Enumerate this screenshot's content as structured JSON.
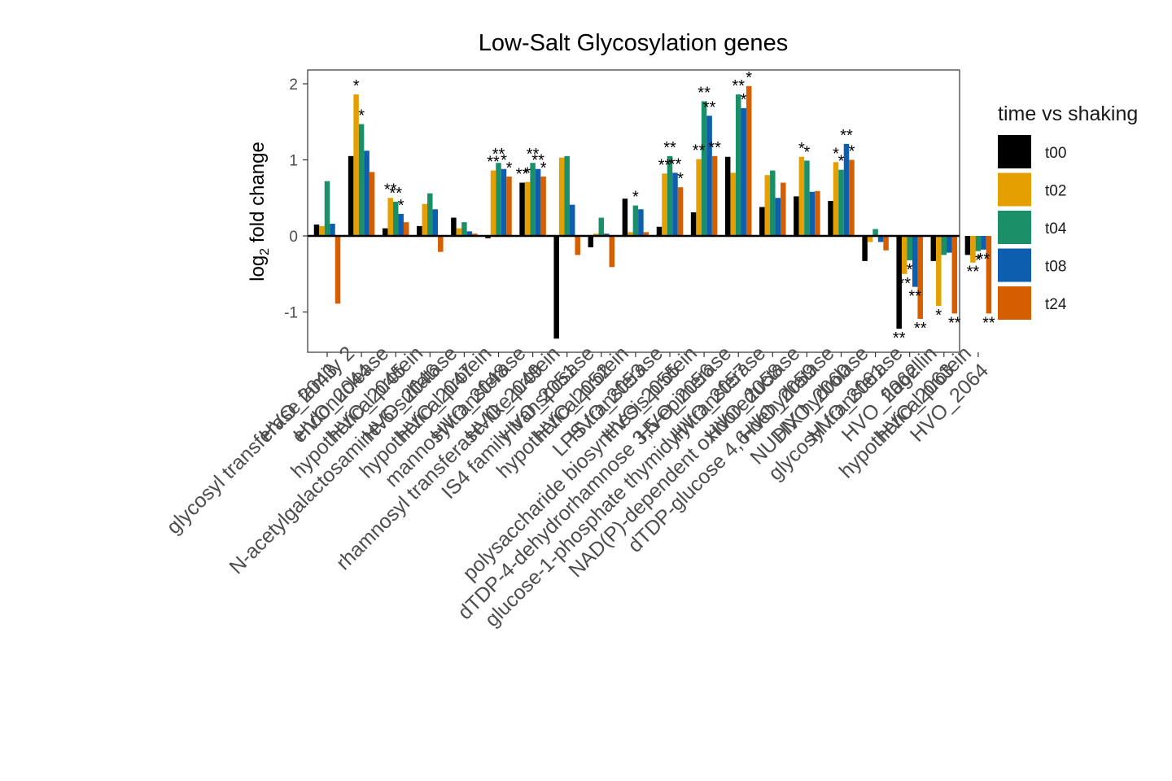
{
  "chart_data": {
    "type": "bar",
    "title": "Low-Salt Glycosylation genes",
    "ylabel_main": "log",
    "ylabel_sub": "2",
    "ylabel_rest": " fold change",
    "xlabel": "",
    "ylim": [
      -1.5,
      2.2
    ],
    "yticks": [
      2,
      1,
      0,
      -1
    ],
    "ytick_labels": [
      "2",
      "1",
      "0",
      "-1"
    ],
    "grid": false,
    "legend": {
      "title": "time vs shaking",
      "position": "right"
    },
    "categories": [
      "HVO_2043",
      "glycosyl transferase family 2 HVO_2044",
      "endonuclease HVO_2045",
      "hypothetical protein HVO_2046",
      "N-acetylgalactosamine-6-sulfatase HVO_2047",
      "hypothetical protein HVO_2048",
      "mannosyltransferase HVO_2049",
      "rhamnosyl transferase-like protein HVO_2051",
      "IS4 family transposase HVO_2052",
      "hypothetical protein HVO_2053",
      "LPS transferase HVO_2055",
      "polysaccharide biosynthesis protein HVO_2056",
      "dTDP-4-dehydrorhamnose 3,5-epimerase HVO_2057",
      "glucose-1-phosphate thymidylyltransferase HVO_2058",
      "NAD(P)-dependent oxidoreductase HVO_2059",
      "dTDP-glucose 4,6-dehydratase HVO_2060",
      "NUDIX hydrolase HVO_2061",
      "glycosyl transferase HVO_2062",
      "flagellin HVO_2063",
      "hypothetical protein HVO_2064"
    ],
    "tick_label_lines": [
      [
        "HVO_2043"
      ],
      [
        "glycosyl transferase family 2",
        "HVO_2044"
      ],
      [
        "endonuclease",
        "HVO_2045"
      ],
      [
        "hypothetical protein",
        "HVO_2046"
      ],
      [
        "N-acetylgalactosamine-6-sulfatase",
        "HVO_2047"
      ],
      [
        "hypothetical protein",
        "HVO_2048"
      ],
      [
        "mannosyltransferase",
        "HVO_2049"
      ],
      [
        "rhamnosyl transferase-like protein",
        "HVO_2051"
      ],
      [
        "IS4 family transposase",
        "HVO_2052"
      ],
      [
        "hypothetical protein",
        "HVO_2053"
      ],
      [
        "LPS transferase",
        "HVO_2055"
      ],
      [
        "polysaccharide biosynthesis protein",
        "HVO_2056"
      ],
      [
        "dTDP-4-dehydrorhamnose 3,5-epimerase",
        "HVO_2057"
      ],
      [
        "glucose-1-phosphate thymidylyltransferase",
        "HVO_2058"
      ],
      [
        "NAD(P)-dependent oxidoreductase",
        "HVO_2059"
      ],
      [
        "dTDP-glucose 4,6-dehydratase",
        "HVO_2060"
      ],
      [
        "NUDIX hydrolase",
        "HVO_2061"
      ],
      [
        "glycosyl transferase",
        "HVO_2062"
      ],
      [
        "flagellin",
        "HVO_2063"
      ],
      [
        "hypothetical protein",
        "HVO_2064"
      ]
    ],
    "series": [
      {
        "name": "t00",
        "color": "#000000",
        "values": [
          0.15,
          1.05,
          0.1,
          0.13,
          0.24,
          -0.03,
          0.7,
          -1.35,
          -0.15,
          0.49,
          0.12,
          0.31,
          1.04,
          0.38,
          0.52,
          0.46,
          -0.33,
          -1.22,
          -0.33,
          -0.25
        ],
        "stars": [
          "",
          "",
          "",
          "",
          "",
          "",
          "**",
          "",
          "",
          "",
          "",
          "",
          "",
          "",
          "",
          "",
          "",
          "**",
          "",
          ""
        ]
      },
      {
        "name": "t02",
        "color": "#E69F00",
        "values": [
          0.13,
          1.86,
          0.5,
          0.42,
          0.1,
          0.86,
          0.71,
          1.03,
          0.03,
          0.05,
          0.82,
          1.01,
          0.83,
          0.8,
          1.04,
          0.97,
          -0.08,
          -0.5,
          -0.92,
          -0.35
        ],
        "stars": [
          "",
          "*",
          "**",
          "",
          "",
          "**",
          "*",
          "",
          "",
          "",
          "**",
          "**",
          "",
          "",
          "*",
          "*",
          "",
          "**",
          "*",
          "**"
        ]
      },
      {
        "name": "t04",
        "color": "#1B9068",
        "values": [
          0.72,
          1.47,
          0.45,
          0.56,
          0.18,
          0.96,
          0.96,
          1.05,
          0.24,
          0.4,
          1.05,
          1.77,
          1.86,
          0.86,
          0.99,
          0.87,
          0.09,
          -0.32,
          -0.25,
          -0.2
        ],
        "stars": [
          "",
          "*",
          "**",
          "",
          "",
          "**",
          "**",
          "",
          "",
          "*",
          "**",
          "**",
          "**",
          "",
          "*",
          "*",
          "",
          "*",
          "",
          "*"
        ]
      },
      {
        "name": "t08",
        "color": "#0D5EAF",
        "values": [
          0.16,
          1.12,
          0.29,
          0.35,
          0.06,
          0.88,
          0.88,
          0.41,
          0.03,
          0.35,
          0.83,
          1.58,
          1.68,
          0.5,
          0.58,
          1.21,
          -0.08,
          -0.67,
          -0.22,
          -0.18
        ],
        "stars": [
          "",
          "",
          "*",
          "",
          "",
          "*",
          "**",
          "",
          "",
          "",
          "**",
          "**",
          "*",
          "",
          "",
          "**",
          "",
          "**",
          "",
          "**"
        ]
      },
      {
        "name": "t24",
        "color": "#D55E00",
        "values": [
          -0.89,
          0.84,
          0.18,
          -0.21,
          0.03,
          0.78,
          0.78,
          -0.25,
          -0.41,
          0.05,
          0.64,
          1.05,
          1.97,
          0.7,
          0.59,
          1.0,
          -0.19,
          -1.09,
          -1.02,
          -1.02
        ],
        "stars": [
          "",
          "",
          "",
          "",
          "",
          "*",
          "*",
          "",
          "",
          "",
          "*",
          "**",
          "*",
          "",
          "",
          "*",
          "",
          "**",
          "**",
          "**"
        ]
      }
    ]
  }
}
